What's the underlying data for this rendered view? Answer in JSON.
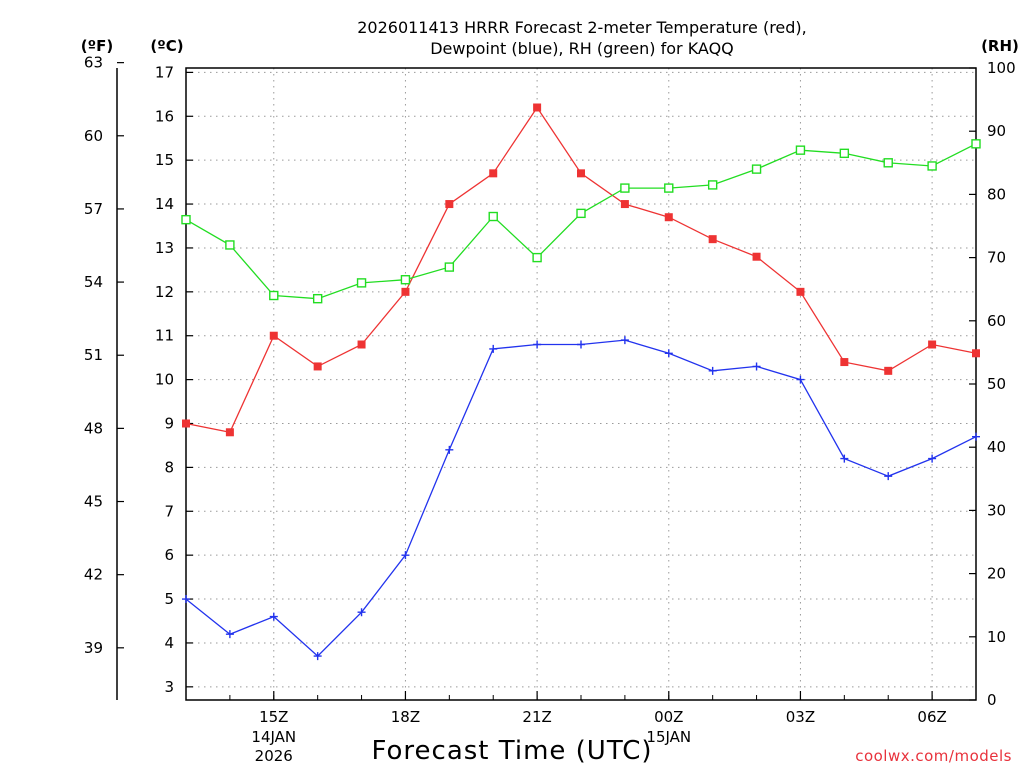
{
  "chart_data": {
    "type": "line",
    "title": [
      "2026011413 HRRR Forecast 2-meter Temperature (red),",
      "Dewpoint (blue), RH (green) for KAQQ"
    ],
    "xlabel": "Forecast Time (UTC)",
    "credit": "coolwx.com/models",
    "x_hours": [
      13,
      14,
      15,
      16,
      17,
      18,
      19,
      20,
      21,
      22,
      23,
      24,
      25,
      26,
      27,
      28,
      29,
      30,
      31
    ],
    "x_ticks": [
      {
        "hour": 15,
        "label": "15Z",
        "sub": [
          "14JAN",
          "2026"
        ]
      },
      {
        "hour": 18,
        "label": "18Z",
        "sub": []
      },
      {
        "hour": 21,
        "label": "21Z",
        "sub": []
      },
      {
        "hour": 24,
        "label": "00Z",
        "sub": [
          "15JAN"
        ]
      },
      {
        "hour": 27,
        "label": "03Z",
        "sub": []
      },
      {
        "hour": 30,
        "label": "06Z",
        "sub": []
      }
    ],
    "xlim": [
      13,
      31
    ],
    "y_left_c": {
      "unit": "(ºC)",
      "ticks": [
        "3",
        "4",
        "5",
        "6",
        "7",
        "8",
        "9",
        "10",
        "11",
        "12",
        "13",
        "14",
        "15",
        "16",
        "17"
      ],
      "lim": [
        2.7,
        17.1
      ]
    },
    "y_left_f": {
      "unit": "(ºF)",
      "ticks": [
        "39",
        "42",
        "45",
        "48",
        "51",
        "54",
        "57",
        "60",
        "63"
      ],
      "values": [
        39,
        42,
        45,
        48,
        51,
        54,
        57,
        60,
        63
      ]
    },
    "y_right": {
      "unit": "(RH)",
      "ticks": [
        "0",
        "10",
        "20",
        "30",
        "40",
        "50",
        "60",
        "70",
        "80",
        "90",
        "100"
      ],
      "lim": [
        0,
        100
      ]
    },
    "series": [
      {
        "name": "Temperature",
        "axis": "C",
        "color": "#ee3333",
        "marker": "square-filled",
        "values": [
          9.0,
          8.8,
          11.0,
          10.3,
          10.8,
          12.0,
          14.0,
          14.7,
          16.2,
          14.7,
          14.0,
          13.7,
          13.2,
          12.8,
          12.0,
          10.4,
          10.2,
          10.8,
          10.6
        ]
      },
      {
        "name": "Dewpoint",
        "axis": "C",
        "color": "#2233ee",
        "marker": "plus",
        "values": [
          5.0,
          4.2,
          4.6,
          3.7,
          4.7,
          6.0,
          8.4,
          10.7,
          10.8,
          10.8,
          10.9,
          10.6,
          10.2,
          10.3,
          10.0,
          8.2,
          7.8,
          8.2,
          8.7
        ]
      },
      {
        "name": "RH",
        "axis": "RH",
        "color": "#22dd22",
        "marker": "square-open",
        "values": [
          76,
          72,
          64,
          63.5,
          66,
          66.5,
          68.5,
          76.5,
          70,
          77,
          81,
          81,
          81.5,
          84,
          87,
          86.5,
          85,
          84.5,
          88
        ]
      }
    ]
  }
}
